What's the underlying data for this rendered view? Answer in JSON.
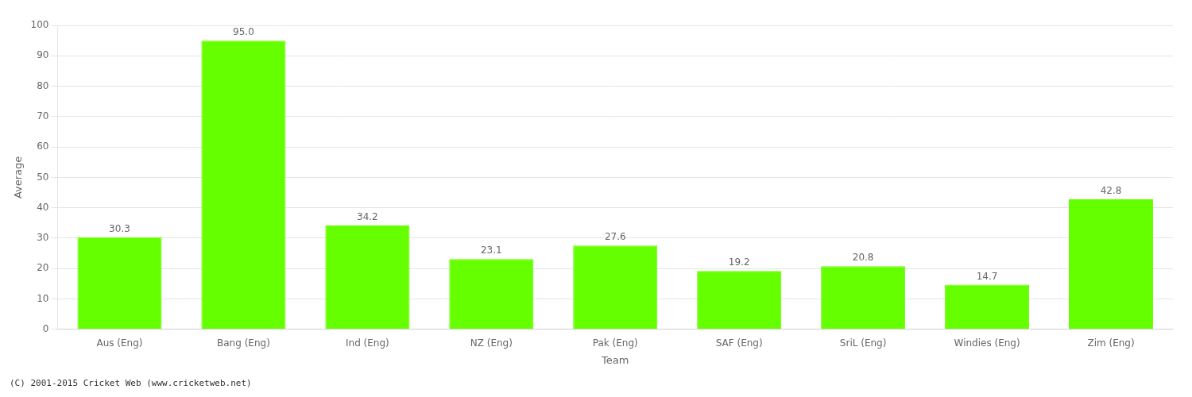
{
  "chart_data": {
    "type": "bar",
    "categories": [
      "Aus (Eng)",
      "Bang (Eng)",
      "Ind (Eng)",
      "NZ (Eng)",
      "Pak (Eng)",
      "SAF (Eng)",
      "SriL (Eng)",
      "Windies (Eng)",
      "Zim (Eng)"
    ],
    "values": [
      30.3,
      95.0,
      34.2,
      23.1,
      27.6,
      19.2,
      20.8,
      14.7,
      42.8
    ],
    "value_labels": [
      "30.3",
      "95.0",
      "34.2",
      "23.1",
      "27.6",
      "19.2",
      "20.8",
      "14.7",
      "42.8"
    ],
    "data_labels": true,
    "color": "#66ff00",
    "xlabel": "Team",
    "ylabel": "Average",
    "ylim": [
      0,
      100
    ],
    "yticks": [
      0,
      10,
      20,
      30,
      40,
      50,
      60,
      70,
      80,
      90,
      100
    ],
    "grid": true,
    "annotations": [
      "(C) 2001-2015 Cricket Web (www.cricketweb.net)"
    ]
  }
}
